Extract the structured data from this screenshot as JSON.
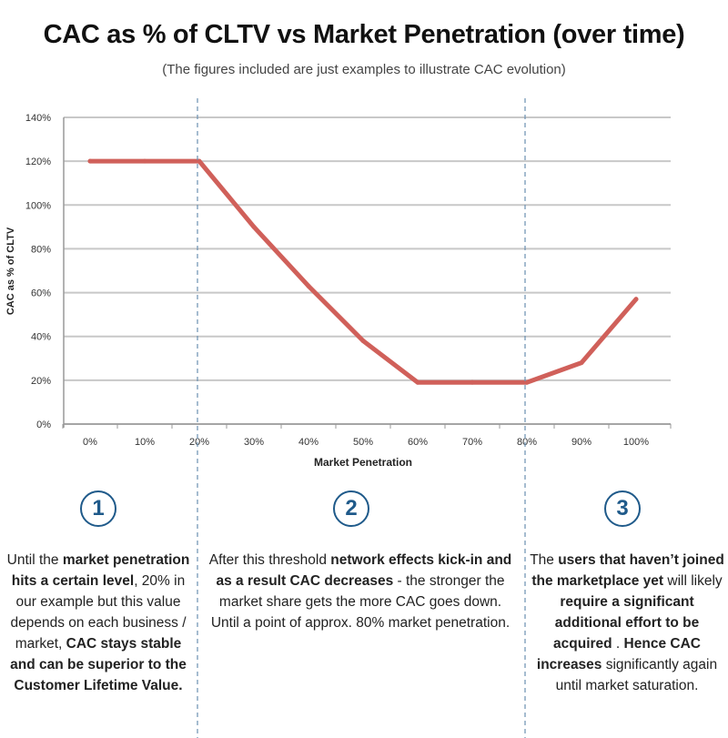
{
  "header": {
    "title": "CAC as % of CLTV vs Market Penetration (over time)",
    "subtitle": "(The figures included are just examples to illustrate CAC evolution)"
  },
  "chart_data": {
    "type": "line",
    "xlabel": "Market Penetration",
    "ylabel": "CAC as % of CLTV",
    "x": [
      "0%",
      "10%",
      "20%",
      "30%",
      "40%",
      "50%",
      "60%",
      "70%",
      "80%",
      "90%",
      "100%"
    ],
    "series": [
      {
        "values": [
          120,
          120,
          120,
          90,
          63,
          38,
          19,
          19,
          19,
          28,
          57
        ],
        "color": "#d0605a"
      }
    ],
    "yticks": [
      "0%",
      "20%",
      "40%",
      "60%",
      "80%",
      "100%",
      "120%",
      "140%"
    ],
    "ylim": [
      0,
      140
    ],
    "grid": true,
    "vertical_markers": [
      "20%",
      "80%"
    ]
  },
  "colors": {
    "accent": "#1f5a8a",
    "line": "#d0605a",
    "grid": "#c8c8c8",
    "marker": "#6a90b0"
  },
  "phases": [
    {
      "number": "1",
      "segments": [
        {
          "t": "Until the ",
          "b": false
        },
        {
          "t": "market penetration hits a certain level",
          "b": true
        },
        {
          "t": ", 20% in our example but this value depends on each business / market, ",
          "b": false
        },
        {
          "t": "CAC stays stable and can be superior to the Customer Lifetime Value.",
          "b": true
        }
      ]
    },
    {
      "number": "2",
      "segments": [
        {
          "t": "After this threshold ",
          "b": false
        },
        {
          "t": "network effects kick-in and as a result CAC decreases",
          "b": true
        },
        {
          "t": " - the stronger the market share gets the more CAC goes down. Until a point of approx. 80% market penetration.",
          "b": false
        }
      ]
    },
    {
      "number": "3",
      "segments": [
        {
          "t": "The ",
          "b": false
        },
        {
          "t": "users that haven’t joined the marketplace yet",
          "b": true
        },
        {
          "t": " will likely ",
          "b": false
        },
        {
          "t": "require a significant additional effort to be acquired",
          "b": true
        },
        {
          "t": " . ",
          "b": false
        },
        {
          "t": "Hence CAC increases",
          "b": true
        },
        {
          "t": " significantly again until market saturation.",
          "b": false
        }
      ]
    }
  ]
}
